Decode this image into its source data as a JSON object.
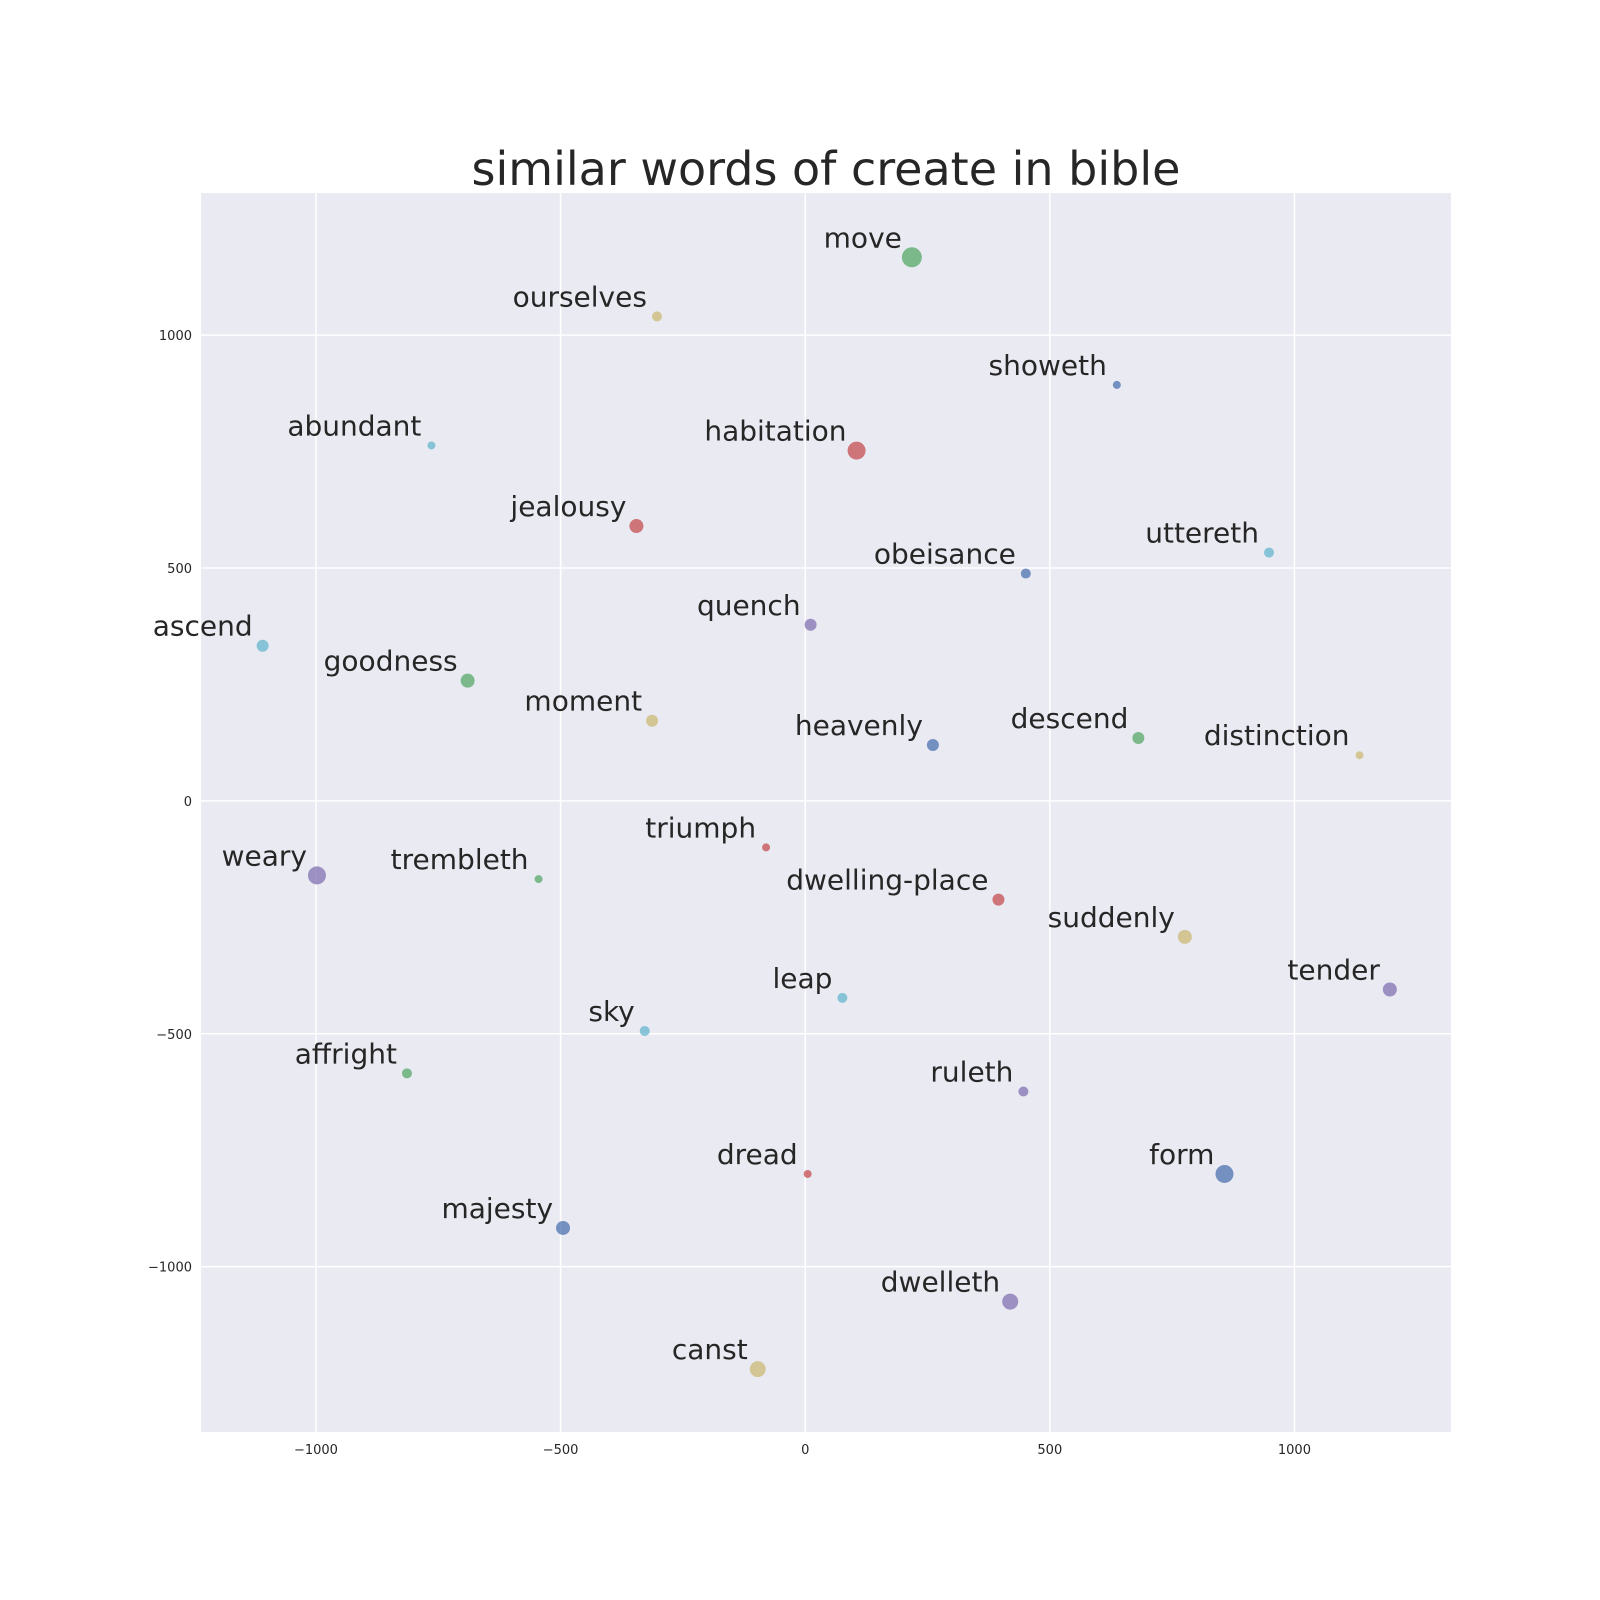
{
  "chart_data": {
    "type": "scatter",
    "title": "similar words of create in bible",
    "xlabel": "",
    "ylabel": "",
    "xlim": [
      -1235,
      1320
    ],
    "ylim": [
      -1355,
      1305
    ],
    "xticks": [
      -1000,
      -500,
      0,
      500,
      1000
    ],
    "yticks": [
      -1000,
      -500,
      0,
      500,
      1000
    ],
    "xtick_labels": [
      "−1000",
      "−500",
      "0",
      "500",
      "1000"
    ],
    "ytick_labels": [
      "−1000",
      "−500",
      "0",
      "500",
      "1000"
    ],
    "grid": true,
    "palette": {
      "blue": "#4c72b0",
      "green": "#55a868",
      "red": "#c44e52",
      "purple": "#8172b2",
      "yellow": "#ccb974",
      "cyan": "#64b5cd"
    },
    "points": [
      {
        "label": "move",
        "x": 218,
        "y": 1167,
        "size": 10,
        "color": "#55a868"
      },
      {
        "label": "ourselves",
        "x": -303,
        "y": 1040,
        "size": 5,
        "color": "#ccb974"
      },
      {
        "label": "showeth",
        "x": 637,
        "y": 893,
        "size": 4,
        "color": "#4c72b0"
      },
      {
        "label": "abundant",
        "x": -764,
        "y": 763,
        "size": 4,
        "color": "#64b5cd"
      },
      {
        "label": "habitation",
        "x": 105,
        "y": 752,
        "size": 9,
        "color": "#c44e52"
      },
      {
        "label": "jealousy",
        "x": -345,
        "y": 590,
        "size": 7,
        "color": "#c44e52"
      },
      {
        "label": "uttereth",
        "x": 948,
        "y": 533,
        "size": 5,
        "color": "#64b5cd"
      },
      {
        "label": "obeisance",
        "x": 451,
        "y": 488,
        "size": 5,
        "color": "#4c72b0"
      },
      {
        "label": "quench",
        "x": 11,
        "y": 378,
        "size": 6,
        "color": "#8172b2"
      },
      {
        "label": "ascend",
        "x": -1109,
        "y": 333,
        "size": 6,
        "color": "#64b5cd"
      },
      {
        "label": "goodness",
        "x": -690,
        "y": 258,
        "size": 7,
        "color": "#55a868"
      },
      {
        "label": "moment",
        "x": -313,
        "y": 172,
        "size": 6,
        "color": "#ccb974"
      },
      {
        "label": "heavenly",
        "x": 261,
        "y": 120,
        "size": 6,
        "color": "#4c72b0"
      },
      {
        "label": "descend",
        "x": 681,
        "y": 135,
        "size": 6,
        "color": "#55a868"
      },
      {
        "label": "distinction",
        "x": 1133,
        "y": 98,
        "size": 4,
        "color": "#ccb974"
      },
      {
        "label": "triumph",
        "x": -80,
        "y": -100,
        "size": 4,
        "color": "#c44e52"
      },
      {
        "label": "weary",
        "x": -998,
        "y": -160,
        "size": 9,
        "color": "#8172b2"
      },
      {
        "label": "trembleth",
        "x": -545,
        "y": -168,
        "size": 4,
        "color": "#55a868"
      },
      {
        "label": "dwelling-place",
        "x": 395,
        "y": -212,
        "size": 6,
        "color": "#c44e52"
      },
      {
        "label": "suddenly",
        "x": 776,
        "y": -292,
        "size": 7,
        "color": "#ccb974"
      },
      {
        "label": "tender",
        "x": 1195,
        "y": -405,
        "size": 7,
        "color": "#8172b2"
      },
      {
        "label": "leap",
        "x": 76,
        "y": -423,
        "size": 5,
        "color": "#64b5cd"
      },
      {
        "label": "sky",
        "x": -328,
        "y": -494,
        "size": 5,
        "color": "#64b5cd"
      },
      {
        "label": "affright",
        "x": -814,
        "y": -585,
        "size": 5,
        "color": "#55a868"
      },
      {
        "label": "ruleth",
        "x": 446,
        "y": -624,
        "size": 5,
        "color": "#8172b2"
      },
      {
        "label": "dread",
        "x": 5,
        "y": -801,
        "size": 4,
        "color": "#c44e52"
      },
      {
        "label": "form",
        "x": 857,
        "y": -801,
        "size": 9,
        "color": "#4c72b0"
      },
      {
        "label": "majesty",
        "x": -495,
        "y": -917,
        "size": 7,
        "color": "#4c72b0"
      },
      {
        "label": "dwelleth",
        "x": 419,
        "y": -1075,
        "size": 8,
        "color": "#8172b2"
      },
      {
        "label": "canst",
        "x": -97,
        "y": -1220,
        "size": 8,
        "color": "#ccb974"
      }
    ]
  }
}
